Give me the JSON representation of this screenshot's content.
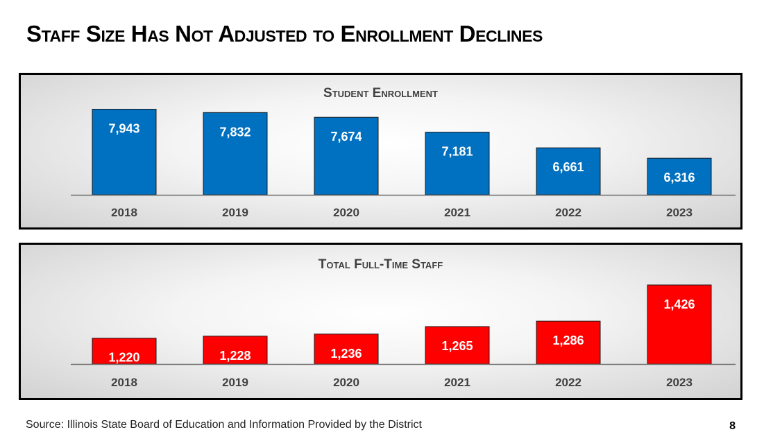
{
  "slide": {
    "title": "Staff Size Has Not Adjusted to Enrollment Declines",
    "source": "Source:  Illinois State Board of Education and Information Provided by the District",
    "page_number": "8"
  },
  "colors": {
    "enrollment_bar": "#0070c0",
    "staff_bar": "#ff0000",
    "panel_border": "#000000"
  },
  "chart_data": [
    {
      "id": "enrollment",
      "type": "bar",
      "title": "Student Enrollment",
      "categories": [
        "2018",
        "2019",
        "2020",
        "2021",
        "2022",
        "2023"
      ],
      "values": [
        7943,
        7832,
        7674,
        7181,
        6661,
        6316
      ],
      "data_labels": [
        "7,943",
        "7,832",
        "7,674",
        "7,181",
        "6,661",
        "6,316"
      ],
      "xlabel": "",
      "ylabel": "",
      "ylim": [
        5100,
        8000
      ],
      "grid": false,
      "legend": "none",
      "color": "#0070c0"
    },
    {
      "id": "staff",
      "type": "bar",
      "title": "Total Full-Time Staff",
      "categories": [
        "2018",
        "2019",
        "2020",
        "2021",
        "2022",
        "2023"
      ],
      "values": [
        1220,
        1228,
        1236,
        1265,
        1286,
        1426
      ],
      "data_labels": [
        "1,220",
        "1,228",
        "1,236",
        "1,265",
        "1,286",
        "1,426"
      ],
      "xlabel": "",
      "ylabel": "",
      "ylim": [
        1120,
        1434
      ],
      "grid": false,
      "legend": "none",
      "color": "#ff0000"
    }
  ]
}
